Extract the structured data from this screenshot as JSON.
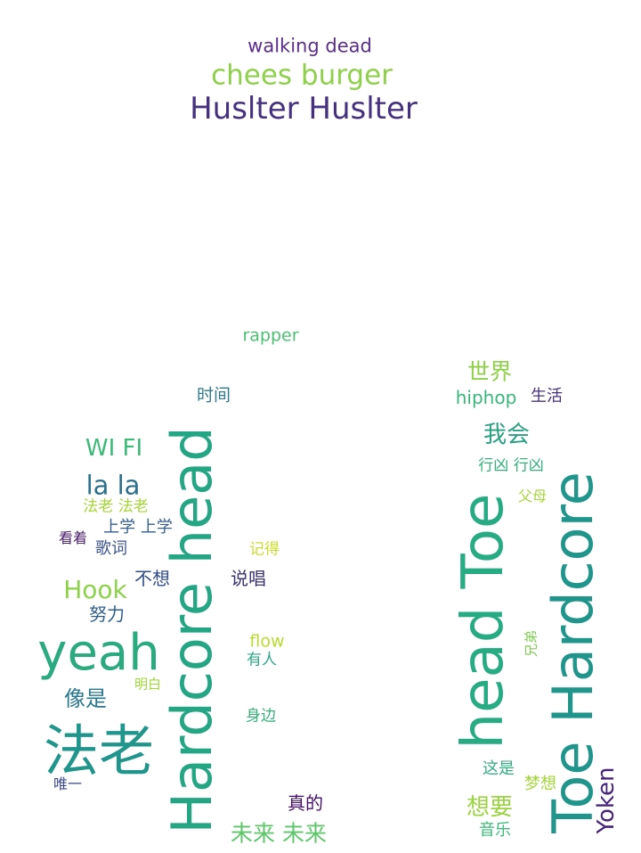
{
  "words": [
    {
      "text": "walking dead",
      "color": "#5b2e8c"
    },
    {
      "text": "chees burger",
      "color": "#8ed04a"
    },
    {
      "text": "Huslter Huslter",
      "color": "#45317f"
    },
    {
      "text": "rapper",
      "color": "#4dbf73"
    },
    {
      "text": "世界",
      "color": "#8ed04a"
    },
    {
      "text": "hiphop",
      "color": "#39b67a"
    },
    {
      "text": "生活",
      "color": "#47327f"
    },
    {
      "text": "时间",
      "color": "#2f7a8c"
    },
    {
      "text": "我会",
      "color": "#2aa184"
    },
    {
      "text": "WI FI",
      "color": "#3cba78"
    },
    {
      "text": "行凶 行凶",
      "color": "#35b17b"
    },
    {
      "text": "父母",
      "color": "#a7d63d"
    },
    {
      "text": "la la",
      "color": "#2b6f8d"
    },
    {
      "text": "法老 法老",
      "color": "#a5d538"
    },
    {
      "text": "上学 上学",
      "color": "#355f8d"
    },
    {
      "text": "看着",
      "color": "#4b1f6b"
    },
    {
      "text": "歌词",
      "color": "#3b528b"
    },
    {
      "text": "记得",
      "color": "#c9dd2d"
    },
    {
      "text": "不想",
      "color": "#314b8b"
    },
    {
      "text": "说唱",
      "color": "#3a3372"
    },
    {
      "text": "Hook",
      "color": "#8dd24a"
    },
    {
      "text": "努力",
      "color": "#2f5f8c"
    },
    {
      "text": "yeah",
      "color": "#2aaa7e"
    },
    {
      "text": "flow",
      "color": "#b6dd30"
    },
    {
      "text": "有人",
      "color": "#2fa88a"
    },
    {
      "text": "明白",
      "color": "#a0d83a"
    },
    {
      "text": "像是",
      "color": "#2b788e"
    },
    {
      "text": "身边",
      "color": "#35b07a"
    },
    {
      "text": "法老",
      "color": "#1f958b"
    },
    {
      "text": "唯一",
      "color": "#3b4a8c"
    },
    {
      "text": "真的",
      "color": "#44106a"
    },
    {
      "text": "未来 未来",
      "color": "#5ec66a"
    },
    {
      "text": "Hardcore head",
      "color": "#24a583"
    },
    {
      "text": "head Toe",
      "color": "#27ab82"
    },
    {
      "text": "Toe Hardcore",
      "color": "#1f958b"
    },
    {
      "text": "兄弟",
      "color": "#7fcc52"
    },
    {
      "text": "这是",
      "color": "#35ab81"
    },
    {
      "text": "梦想",
      "color": "#a3d53b"
    },
    {
      "text": "想要",
      "color": "#9ad441"
    },
    {
      "text": "音乐",
      "color": "#3abb78"
    },
    {
      "text": "Yoken",
      "color": "#47237b"
    }
  ]
}
